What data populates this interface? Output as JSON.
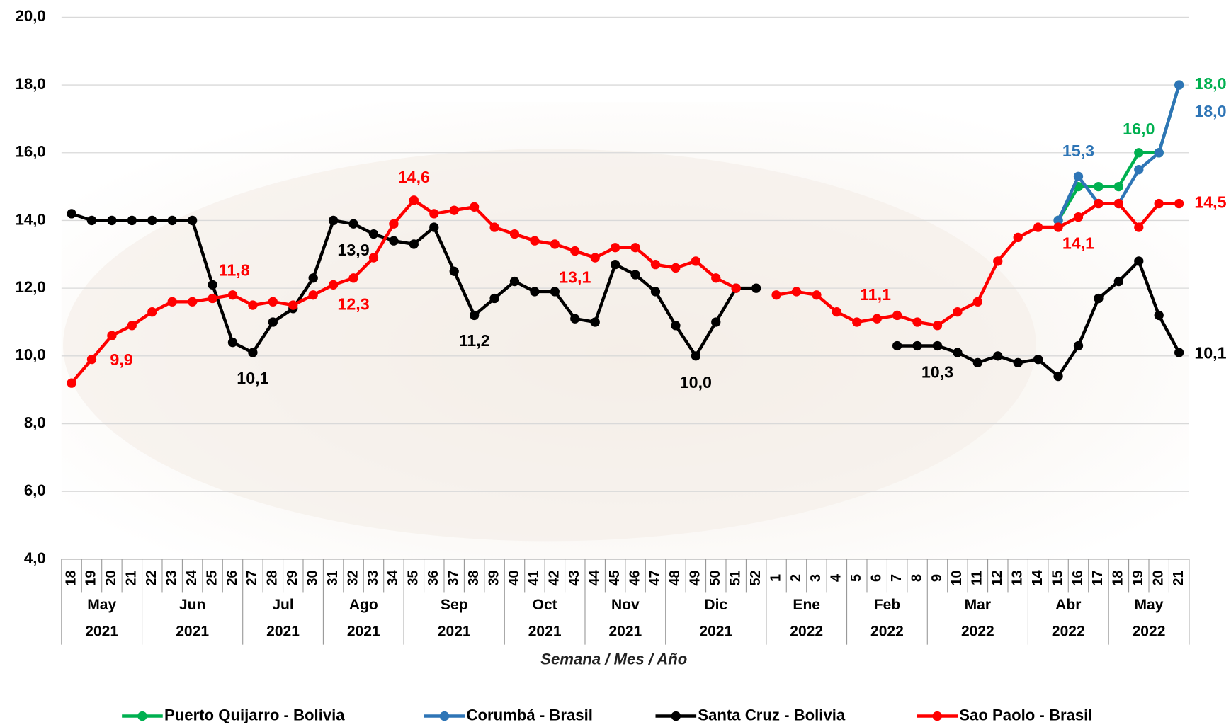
{
  "chart_data": {
    "type": "line",
    "x_label": "Semana / Mes / Año",
    "ylim": [
      4,
      20
    ],
    "yticks": [
      {
        "value": 4,
        "label": "4,0"
      },
      {
        "value": 6,
        "label": "6,0"
      },
      {
        "value": 8,
        "label": "8,0"
      },
      {
        "value": 10,
        "label": "10,0"
      },
      {
        "value": 12,
        "label": "12,0"
      },
      {
        "value": 14,
        "label": "14,0"
      },
      {
        "value": 16,
        "label": "16,0"
      },
      {
        "value": 18,
        "label": "18,0"
      },
      {
        "value": 20,
        "label": "20,0"
      }
    ],
    "grid": true,
    "legend": "bottom",
    "categories": [
      [
        "18",
        "May",
        "2021"
      ],
      [
        "19",
        "May",
        "2021"
      ],
      [
        "20",
        "May",
        "2021"
      ],
      [
        "21",
        "May",
        "2021"
      ],
      [
        "22",
        "Jun",
        "2021"
      ],
      [
        "23",
        "Jun",
        "2021"
      ],
      [
        "24",
        "Jun",
        "2021"
      ],
      [
        "25",
        "Jun",
        "2021"
      ],
      [
        "26",
        "Jun",
        "2021"
      ],
      [
        "27",
        "Jul",
        "2021"
      ],
      [
        "28",
        "Jul",
        "2021"
      ],
      [
        "29",
        "Jul",
        "2021"
      ],
      [
        "30",
        "Jul",
        "2021"
      ],
      [
        "31",
        "Ago",
        "2021"
      ],
      [
        "32",
        "Ago",
        "2021"
      ],
      [
        "33",
        "Ago",
        "2021"
      ],
      [
        "34",
        "Ago",
        "2021"
      ],
      [
        "35",
        "Sep",
        "2021"
      ],
      [
        "36",
        "Sep",
        "2021"
      ],
      [
        "37",
        "Sep",
        "2021"
      ],
      [
        "38",
        "Sep",
        "2021"
      ],
      [
        "39",
        "Sep",
        "2021"
      ],
      [
        "40",
        "Oct",
        "2021"
      ],
      [
        "41",
        "Oct",
        "2021"
      ],
      [
        "42",
        "Oct",
        "2021"
      ],
      [
        "43",
        "Oct",
        "2021"
      ],
      [
        "44",
        "Nov",
        "2021"
      ],
      [
        "45",
        "Nov",
        "2021"
      ],
      [
        "46",
        "Nov",
        "2021"
      ],
      [
        "47",
        "Nov",
        "2021"
      ],
      [
        "48",
        "Dic",
        "2021"
      ],
      [
        "49",
        "Dic",
        "2021"
      ],
      [
        "50",
        "Dic",
        "2021"
      ],
      [
        "51",
        "Dic",
        "2021"
      ],
      [
        "52",
        "Dic",
        "2021"
      ],
      [
        "1",
        "Ene",
        "2022"
      ],
      [
        "2",
        "Ene",
        "2022"
      ],
      [
        "3",
        "Ene",
        "2022"
      ],
      [
        "4",
        "Ene",
        "2022"
      ],
      [
        "5",
        "Feb",
        "2022"
      ],
      [
        "6",
        "Feb",
        "2022"
      ],
      [
        "7",
        "Feb",
        "2022"
      ],
      [
        "8",
        "Feb",
        "2022"
      ],
      [
        "9",
        "Mar",
        "2022"
      ],
      [
        "10",
        "Mar",
        "2022"
      ],
      [
        "11",
        "Mar",
        "2022"
      ],
      [
        "12",
        "Mar",
        "2022"
      ],
      [
        "13",
        "Mar",
        "2022"
      ],
      [
        "14",
        "Abr",
        "2022"
      ],
      [
        "15",
        "Abr",
        "2022"
      ],
      [
        "16",
        "Abr",
        "2022"
      ],
      [
        "17",
        "Abr",
        "2022"
      ],
      [
        "18",
        "May",
        "2022"
      ],
      [
        "19",
        "May",
        "2022"
      ],
      [
        "20",
        "May",
        "2022"
      ],
      [
        "21",
        "May",
        "2022"
      ]
    ],
    "series": [
      {
        "name": "Puerto Quijarro - Bolivia",
        "color": "#00b050",
        "values": [
          null,
          null,
          null,
          null,
          null,
          null,
          null,
          null,
          null,
          null,
          null,
          null,
          null,
          null,
          null,
          null,
          null,
          null,
          null,
          null,
          null,
          null,
          null,
          null,
          null,
          null,
          null,
          null,
          null,
          null,
          null,
          null,
          null,
          null,
          null,
          null,
          null,
          null,
          null,
          null,
          null,
          null,
          null,
          null,
          null,
          null,
          null,
          null,
          null,
          14.0,
          15.0,
          15.0,
          15.0,
          16.0,
          16.0,
          18.0
        ],
        "value_labels": [
          null,
          null,
          null,
          null,
          null,
          null,
          null,
          null,
          null,
          null,
          null,
          null,
          null,
          null,
          null,
          null,
          null,
          null,
          null,
          null,
          null,
          null,
          null,
          null,
          null,
          null,
          null,
          null,
          null,
          null,
          null,
          null,
          null,
          null,
          null,
          null,
          null,
          null,
          null,
          null,
          null,
          null,
          null,
          null,
          null,
          null,
          null,
          null,
          null,
          null,
          null,
          null,
          null,
          "16,0",
          null,
          "18,0"
        ]
      },
      {
        "name": "Corumbá - Brasil",
        "color": "#2e75b6",
        "values": [
          null,
          null,
          null,
          null,
          null,
          null,
          null,
          null,
          null,
          null,
          null,
          null,
          null,
          null,
          null,
          null,
          null,
          null,
          null,
          null,
          null,
          null,
          null,
          null,
          null,
          null,
          null,
          null,
          null,
          null,
          null,
          null,
          null,
          null,
          null,
          null,
          null,
          null,
          null,
          null,
          null,
          null,
          null,
          null,
          null,
          null,
          null,
          null,
          null,
          14.0,
          15.3,
          14.5,
          14.5,
          15.5,
          16.0,
          18.0
        ],
        "value_labels": [
          null,
          null,
          null,
          null,
          null,
          null,
          null,
          null,
          null,
          null,
          null,
          null,
          null,
          null,
          null,
          null,
          null,
          null,
          null,
          null,
          null,
          null,
          null,
          null,
          null,
          null,
          null,
          null,
          null,
          null,
          null,
          null,
          null,
          null,
          null,
          null,
          null,
          null,
          null,
          null,
          null,
          null,
          null,
          null,
          null,
          null,
          null,
          null,
          null,
          null,
          "15,3",
          null,
          null,
          null,
          null,
          "18,0"
        ]
      },
      {
        "name": "Santa Cruz - Bolivia",
        "color": "#000000",
        "values": [
          14.2,
          14.0,
          14.0,
          14.0,
          14.0,
          14.0,
          14.0,
          12.1,
          10.4,
          10.1,
          11.0,
          11.4,
          12.3,
          14.0,
          13.9,
          13.6,
          13.4,
          13.3,
          13.8,
          12.5,
          11.2,
          11.7,
          12.2,
          11.9,
          11.9,
          11.1,
          11.0,
          12.7,
          12.4,
          11.9,
          10.9,
          10.0,
          11.0,
          12.0,
          12.0,
          null,
          null,
          null,
          null,
          null,
          null,
          10.3,
          10.3,
          10.3,
          10.1,
          9.8,
          10.0,
          9.8,
          9.9,
          9.4,
          10.3,
          11.7,
          12.2,
          12.8,
          11.2,
          10.1
        ],
        "value_labels": [
          null,
          null,
          null,
          null,
          null,
          null,
          null,
          null,
          null,
          "10,1",
          null,
          null,
          null,
          null,
          "13,9",
          null,
          null,
          null,
          null,
          null,
          "11,2",
          null,
          null,
          null,
          null,
          null,
          null,
          null,
          null,
          null,
          null,
          "10,0",
          null,
          null,
          null,
          null,
          null,
          null,
          null,
          null,
          null,
          null,
          null,
          "10,3",
          null,
          null,
          null,
          null,
          null,
          null,
          null,
          null,
          null,
          null,
          null,
          "10,1"
        ]
      },
      {
        "name": "Sao Paolo - Brasil",
        "color": "#ff0000",
        "values": [
          9.2,
          9.9,
          10.6,
          10.9,
          11.3,
          11.6,
          11.6,
          11.7,
          11.8,
          11.5,
          11.6,
          11.5,
          11.8,
          12.1,
          12.3,
          12.9,
          13.9,
          14.6,
          14.2,
          14.3,
          14.4,
          13.8,
          13.6,
          13.4,
          13.3,
          13.1,
          12.9,
          13.2,
          13.2,
          12.7,
          12.6,
          12.8,
          12.3,
          12.0,
          null,
          11.8,
          11.9,
          11.8,
          11.3,
          11.0,
          11.1,
          11.2,
          11.0,
          10.9,
          11.3,
          11.6,
          12.8,
          13.5,
          13.8,
          13.8,
          14.1,
          14.5,
          14.5,
          13.8,
          14.5,
          14.5
        ],
        "value_labels": [
          null,
          "9,9",
          null,
          null,
          null,
          null,
          null,
          null,
          "11,8",
          null,
          null,
          null,
          null,
          null,
          "12,3",
          null,
          null,
          "14,6",
          null,
          null,
          null,
          null,
          null,
          null,
          null,
          "13,1",
          null,
          null,
          null,
          null,
          null,
          null,
          null,
          null,
          null,
          null,
          null,
          null,
          null,
          null,
          "11,1",
          null,
          null,
          null,
          null,
          null,
          null,
          null,
          null,
          null,
          "14,1",
          null,
          null,
          null,
          null,
          "14,5"
        ]
      }
    ]
  }
}
